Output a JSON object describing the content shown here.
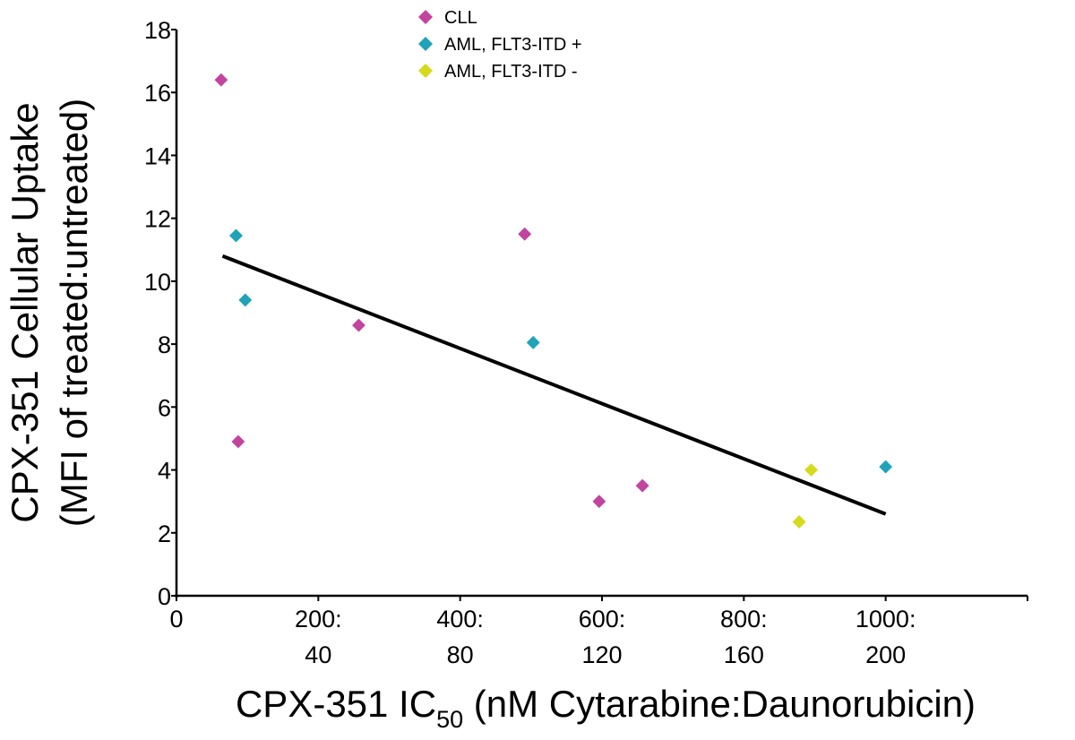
{
  "chart_data": {
    "type": "scatter",
    "xlabel": "CPX-351 IC",
    "xlabel_sub": "50",
    "xlabel_rest": " (nM Cytarabine:Daunorubicin)",
    "ylabel_line1": "CPX-351 Cellular Uptake",
    "ylabel_line2": "(MFI of treated:untreated)",
    "xlim": [
      0,
      1200
    ],
    "ylim": [
      0,
      18
    ],
    "grid": false,
    "legend_position": "top-center",
    "x_ticks": [
      {
        "value": 0,
        "line1": "0",
        "line2": ""
      },
      {
        "value": 200,
        "line1": "200:",
        "line2": "40"
      },
      {
        "value": 400,
        "line1": "400:",
        "line2": "80"
      },
      {
        "value": 600,
        "line1": "600:",
        "line2": "120"
      },
      {
        "value": 800,
        "line1": "800:",
        "line2": "160"
      },
      {
        "value": 1000,
        "line1": "1000:",
        "line2": "200"
      }
    ],
    "y_ticks": [
      0,
      2,
      4,
      6,
      8,
      10,
      12,
      14,
      16,
      18
    ],
    "series": [
      {
        "name": "CLL",
        "color": "#c2449e",
        "points": [
          [
            63,
            16.4
          ],
          [
            87,
            4.9
          ],
          [
            257,
            8.6
          ],
          [
            491,
            11.5
          ],
          [
            596,
            3.0
          ],
          [
            657,
            3.5
          ]
        ]
      },
      {
        "name": "AML, FLT3-ITD +",
        "color": "#1fa3b8",
        "points": [
          [
            84,
            11.45
          ],
          [
            97,
            9.4
          ],
          [
            503,
            8.05
          ],
          [
            1000,
            4.1
          ]
        ]
      },
      {
        "name": "AML, FLT3-ITD -",
        "color": "#d6da1c",
        "points": [
          [
            878,
            2.35
          ],
          [
            895,
            4.0
          ]
        ]
      }
    ],
    "trendline": {
      "x": [
        65,
        1000
      ],
      "y": [
        10.8,
        2.6
      ],
      "color": "#000000"
    }
  }
}
